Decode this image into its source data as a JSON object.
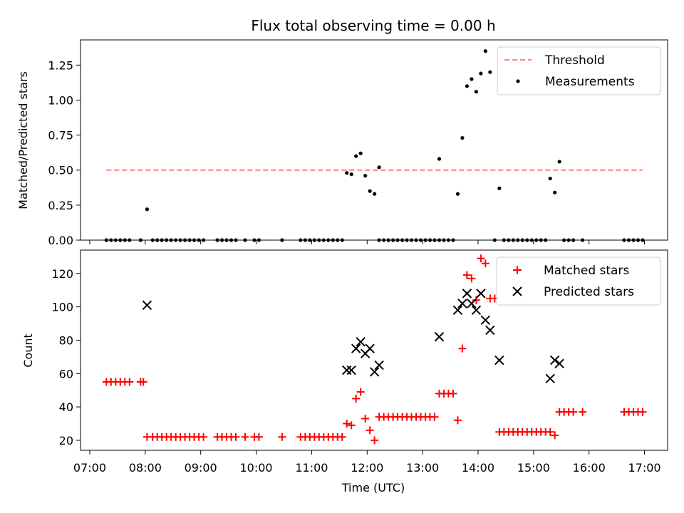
{
  "chart_data": {
    "title": "Flux total observing time = 0.00 h",
    "xlabel": "Time (UTC)",
    "x_ticks": [
      "07:00",
      "08:00",
      "09:00",
      "10:00",
      "11:00",
      "12:00",
      "13:00",
      "14:00",
      "15:00",
      "16:00",
      "17:00"
    ],
    "xlim": [
      "06:50",
      "17:25"
    ],
    "panels": [
      {
        "type": "scatter",
        "ylabel": "Matched/Predicted stars",
        "ylim": [
          0,
          1.43
        ],
        "y_ticks": [
          "0.00",
          "0.25",
          "0.50",
          "0.75",
          "1.00",
          "1.25"
        ],
        "legend_position": "top-right",
        "threshold": {
          "name": "Threshold",
          "value": 0.5,
          "x_start": "07:18",
          "x_end": "16:58",
          "color": "#ff7f7f"
        },
        "series": [
          {
            "name": "Measurements",
            "color": "#000000",
            "points": [
              [
                "07:18",
                0
              ],
              [
                "07:23",
                0
              ],
              [
                "07:28",
                0
              ],
              [
                "07:33",
                0
              ],
              [
                "07:38",
                0
              ],
              [
                "07:43",
                0
              ],
              [
                "07:55",
                0
              ],
              [
                "08:02",
                0.22
              ],
              [
                "08:08",
                0
              ],
              [
                "08:13",
                0
              ],
              [
                "08:18",
                0
              ],
              [
                "08:23",
                0
              ],
              [
                "08:28",
                0
              ],
              [
                "08:33",
                0
              ],
              [
                "08:38",
                0
              ],
              [
                "08:43",
                0
              ],
              [
                "08:48",
                0
              ],
              [
                "08:53",
                0
              ],
              [
                "08:58",
                0
              ],
              [
                "09:03",
                0
              ],
              [
                "09:18",
                0
              ],
              [
                "09:23",
                0
              ],
              [
                "09:28",
                0
              ],
              [
                "09:33",
                0
              ],
              [
                "09:38",
                0
              ],
              [
                "09:48",
                0
              ],
              [
                "09:58",
                0
              ],
              [
                "10:03",
                0
              ],
              [
                "10:28",
                0
              ],
              [
                "10:48",
                0
              ],
              [
                "10:53",
                0
              ],
              [
                "10:58",
                0
              ],
              [
                "11:03",
                0
              ],
              [
                "11:08",
                0
              ],
              [
                "11:13",
                0
              ],
              [
                "11:18",
                0
              ],
              [
                "11:23",
                0
              ],
              [
                "11:28",
                0
              ],
              [
                "11:33",
                0
              ],
              [
                "11:38",
                0.48
              ],
              [
                "11:43",
                0.47
              ],
              [
                "11:48",
                0.6
              ],
              [
                "11:53",
                0.62
              ],
              [
                "11:58",
                0.46
              ],
              [
                "12:03",
                0.35
              ],
              [
                "12:08",
                0.33
              ],
              [
                "12:13",
                0.52
              ],
              [
                "12:13",
                0
              ],
              [
                "12:18",
                0
              ],
              [
                "12:23",
                0
              ],
              [
                "12:28",
                0
              ],
              [
                "12:33",
                0
              ],
              [
                "12:38",
                0
              ],
              [
                "12:43",
                0
              ],
              [
                "12:48",
                0
              ],
              [
                "12:53",
                0
              ],
              [
                "12:58",
                0
              ],
              [
                "13:03",
                0
              ],
              [
                "13:08",
                0
              ],
              [
                "13:13",
                0
              ],
              [
                "13:18",
                0
              ],
              [
                "13:18",
                0.58
              ],
              [
                "13:23",
                0
              ],
              [
                "13:28",
                0
              ],
              [
                "13:33",
                0
              ],
              [
                "13:38",
                0.33
              ],
              [
                "13:43",
                0.73
              ],
              [
                "13:48",
                1.1
              ],
              [
                "13:53",
                1.15
              ],
              [
                "13:58",
                1.06
              ],
              [
                "14:03",
                1.19
              ],
              [
                "14:08",
                1.35
              ],
              [
                "14:13",
                1.2
              ],
              [
                "14:18",
                0
              ],
              [
                "14:23",
                0.37
              ],
              [
                "14:28",
                0
              ],
              [
                "14:33",
                0
              ],
              [
                "14:38",
                0
              ],
              [
                "14:43",
                0
              ],
              [
                "14:48",
                0
              ],
              [
                "14:53",
                0
              ],
              [
                "14:58",
                0
              ],
              [
                "15:03",
                0
              ],
              [
                "15:08",
                0
              ],
              [
                "15:13",
                0
              ],
              [
                "15:18",
                0.44
              ],
              [
                "15:23",
                0.34
              ],
              [
                "15:28",
                0.56
              ],
              [
                "15:33",
                0
              ],
              [
                "15:38",
                0
              ],
              [
                "15:43",
                0
              ],
              [
                "15:53",
                0
              ],
              [
                "16:38",
                0
              ],
              [
                "16:43",
                0
              ],
              [
                "16:48",
                0
              ],
              [
                "16:53",
                0
              ],
              [
                "16:58",
                0
              ]
            ]
          }
        ]
      },
      {
        "type": "scatter",
        "ylabel": "Count",
        "ylim": [
          14,
          134
        ],
        "y_ticks": [
          "20",
          "40",
          "60",
          "80",
          "100",
          "120"
        ],
        "legend_position": "top-right",
        "series": [
          {
            "name": "Matched stars",
            "color": "#ff0000",
            "marker": "plus",
            "points": [
              [
                "07:18",
                55
              ],
              [
                "07:23",
                55
              ],
              [
                "07:28",
                55
              ],
              [
                "07:33",
                55
              ],
              [
                "07:38",
                55
              ],
              [
                "07:43",
                55
              ],
              [
                "07:55",
                55
              ],
              [
                "07:58",
                55
              ],
              [
                "08:02",
                22
              ],
              [
                "08:08",
                22
              ],
              [
                "08:13",
                22
              ],
              [
                "08:18",
                22
              ],
              [
                "08:23",
                22
              ],
              [
                "08:28",
                22
              ],
              [
                "08:33",
                22
              ],
              [
                "08:38",
                22
              ],
              [
                "08:43",
                22
              ],
              [
                "08:48",
                22
              ],
              [
                "08:53",
                22
              ],
              [
                "08:58",
                22
              ],
              [
                "09:03",
                22
              ],
              [
                "09:18",
                22
              ],
              [
                "09:23",
                22
              ],
              [
                "09:28",
                22
              ],
              [
                "09:33",
                22
              ],
              [
                "09:38",
                22
              ],
              [
                "09:48",
                22
              ],
              [
                "09:58",
                22
              ],
              [
                "10:03",
                22
              ],
              [
                "10:28",
                22
              ],
              [
                "10:48",
                22
              ],
              [
                "10:53",
                22
              ],
              [
                "10:58",
                22
              ],
              [
                "11:03",
                22
              ],
              [
                "11:08",
                22
              ],
              [
                "11:13",
                22
              ],
              [
                "11:18",
                22
              ],
              [
                "11:23",
                22
              ],
              [
                "11:28",
                22
              ],
              [
                "11:33",
                22
              ],
              [
                "11:38",
                30
              ],
              [
                "11:43",
                29
              ],
              [
                "11:48",
                45
              ],
              [
                "11:53",
                49
              ],
              [
                "11:58",
                33
              ],
              [
                "12:03",
                26
              ],
              [
                "12:08",
                20
              ],
              [
                "12:13",
                34
              ],
              [
                "12:18",
                34
              ],
              [
                "12:23",
                34
              ],
              [
                "12:28",
                34
              ],
              [
                "12:33",
                34
              ],
              [
                "12:38",
                34
              ],
              [
                "12:43",
                34
              ],
              [
                "12:48",
                34
              ],
              [
                "12:53",
                34
              ],
              [
                "12:58",
                34
              ],
              [
                "13:03",
                34
              ],
              [
                "13:08",
                34
              ],
              [
                "13:13",
                34
              ],
              [
                "13:18",
                48
              ],
              [
                "13:23",
                48
              ],
              [
                "13:28",
                48
              ],
              [
                "13:33",
                48
              ],
              [
                "13:38",
                32
              ],
              [
                "13:43",
                75
              ],
              [
                "13:48",
                119
              ],
              [
                "13:53",
                117
              ],
              [
                "13:58",
                104
              ],
              [
                "14:03",
                129
              ],
              [
                "14:08",
                126
              ],
              [
                "14:13",
                105
              ],
              [
                "14:18",
                105
              ],
              [
                "14:23",
                25
              ],
              [
                "14:28",
                25
              ],
              [
                "14:33",
                25
              ],
              [
                "14:38",
                25
              ],
              [
                "14:43",
                25
              ],
              [
                "14:48",
                25
              ],
              [
                "14:53",
                25
              ],
              [
                "14:58",
                25
              ],
              [
                "15:03",
                25
              ],
              [
                "15:08",
                25
              ],
              [
                "15:13",
                25
              ],
              [
                "15:18",
                25
              ],
              [
                "15:23",
                23
              ],
              [
                "15:28",
                37
              ],
              [
                "15:33",
                37
              ],
              [
                "15:38",
                37
              ],
              [
                "15:43",
                37
              ],
              [
                "15:53",
                37
              ],
              [
                "16:38",
                37
              ],
              [
                "16:43",
                37
              ],
              [
                "16:48",
                37
              ],
              [
                "16:53",
                37
              ],
              [
                "16:58",
                37
              ]
            ]
          },
          {
            "name": "Predicted stars",
            "color": "#000000",
            "marker": "x",
            "points": [
              [
                "08:02",
                101
              ],
              [
                "11:38",
                62
              ],
              [
                "11:43",
                62
              ],
              [
                "11:48",
                75
              ],
              [
                "11:53",
                79
              ],
              [
                "11:58",
                72
              ],
              [
                "12:03",
                75
              ],
              [
                "12:08",
                61
              ],
              [
                "12:13",
                65
              ],
              [
                "13:18",
                82
              ],
              [
                "13:38",
                98
              ],
              [
                "13:43",
                102
              ],
              [
                "13:48",
                108
              ],
              [
                "13:53",
                102
              ],
              [
                "13:58",
                98
              ],
              [
                "14:03",
                108
              ],
              [
                "14:08",
                92
              ],
              [
                "14:13",
                86
              ],
              [
                "14:23",
                68
              ],
              [
                "15:18",
                57
              ],
              [
                "15:23",
                68
              ],
              [
                "15:28",
                66
              ]
            ]
          }
        ]
      }
    ]
  }
}
